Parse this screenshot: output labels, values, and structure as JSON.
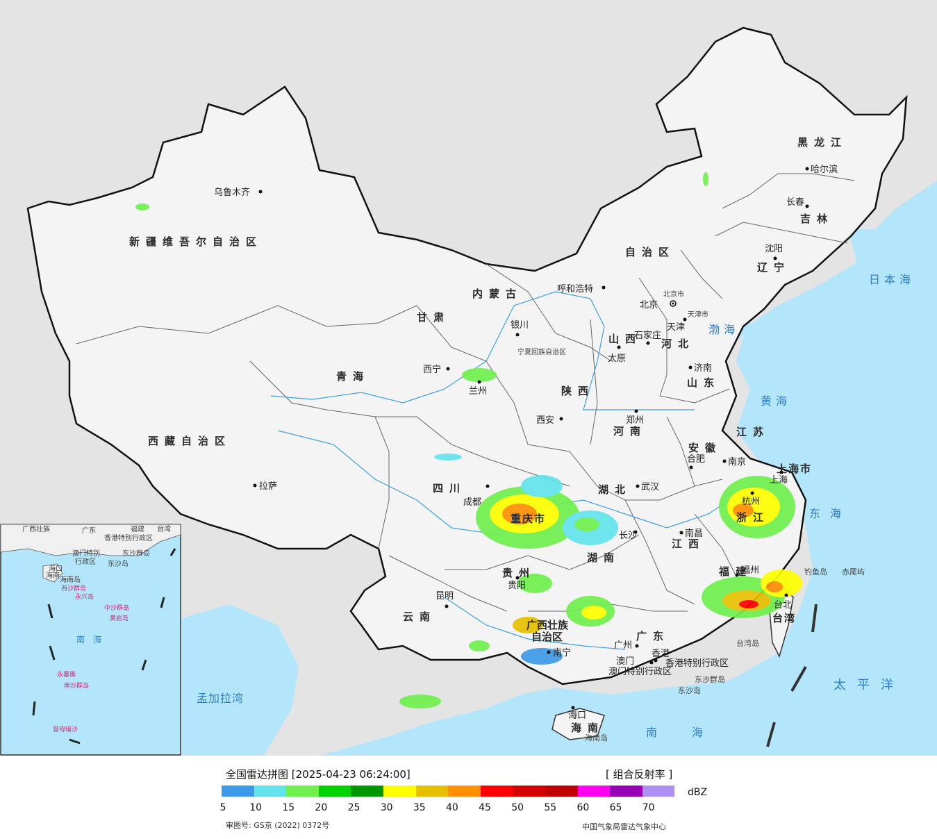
{
  "map": {
    "provinces": [
      "新疆维吾尔自治区",
      "西藏自治区",
      "青海",
      "甘肃",
      "内蒙古",
      "自治区",
      "四川",
      "云南",
      "贵州",
      "广西壮族",
      "自治区",
      "广东",
      "湖南",
      "湖北",
      "河南",
      "陕西",
      "山西",
      "河北",
      "山东",
      "江苏",
      "安徽",
      "浙江",
      "江西",
      "福建",
      "辽宁",
      "吉林",
      "黑龙江",
      "重庆市",
      "上海市",
      "海南",
      "台湾",
      "宁夏回族自治区",
      "天津市",
      "北京市",
      "香港特别行政区",
      "澳门特别行政区"
    ],
    "cities": [
      "乌鲁木齐",
      "拉萨",
      "西宁",
      "兰州",
      "银川",
      "呼和浩特",
      "成都",
      "昆明",
      "贵阳",
      "南宁",
      "广州",
      "长沙",
      "武汉",
      "郑州",
      "西安",
      "太原",
      "石家庄",
      "北京",
      "天津",
      "济南",
      "南京",
      "合肥",
      "杭州",
      "南昌",
      "福州",
      "台北",
      "沈阳",
      "长春",
      "哈尔滨",
      "海口",
      "香港",
      "澳门",
      "上海"
    ],
    "seas": [
      "日本海",
      "渤海",
      "黄海",
      "东海",
      "南海",
      "太平洋",
      "孟加拉湾"
    ],
    "islands": [
      "台湾岛",
      "海南岛",
      "东沙群岛",
      "东沙岛",
      "赤尾屿",
      "钓鱼岛"
    ],
    "inset_labels": [
      "广西壮族",
      "广东",
      "福建",
      "台湾",
      "香港特别行政区",
      "澳门特别",
      "行政区",
      "东沙群岛",
      "东沙岛",
      "海口",
      "海南",
      "海南岛",
      "西沙群岛",
      "永兴岛",
      "中沙群岛",
      "黄岩岛",
      "南海",
      "南沙群岛",
      "永暑礁",
      "曾母暗沙"
    ]
  },
  "legend": {
    "title": "全国雷达拼图 [2025-04-23 06:24:00]",
    "product": "[ 组合反射率 ]",
    "unit": "dBZ",
    "ticks": [
      "5",
      "10",
      "15",
      "20",
      "25",
      "30",
      "35",
      "40",
      "45",
      "50",
      "55",
      "60",
      "65",
      "70"
    ],
    "colors": [
      "#3d9ae8",
      "#63e3ec",
      "#6ff04c",
      "#00d200",
      "#009600",
      "#ffff00",
      "#e6c000",
      "#ff9000",
      "#ff0000",
      "#d60000",
      "#c00000",
      "#ff00f0",
      "#9600b4",
      "#ad90f0"
    ],
    "approval": "审图号: GS京 (2022) 0372号",
    "credit": "中国气象局雷达气象中心"
  }
}
